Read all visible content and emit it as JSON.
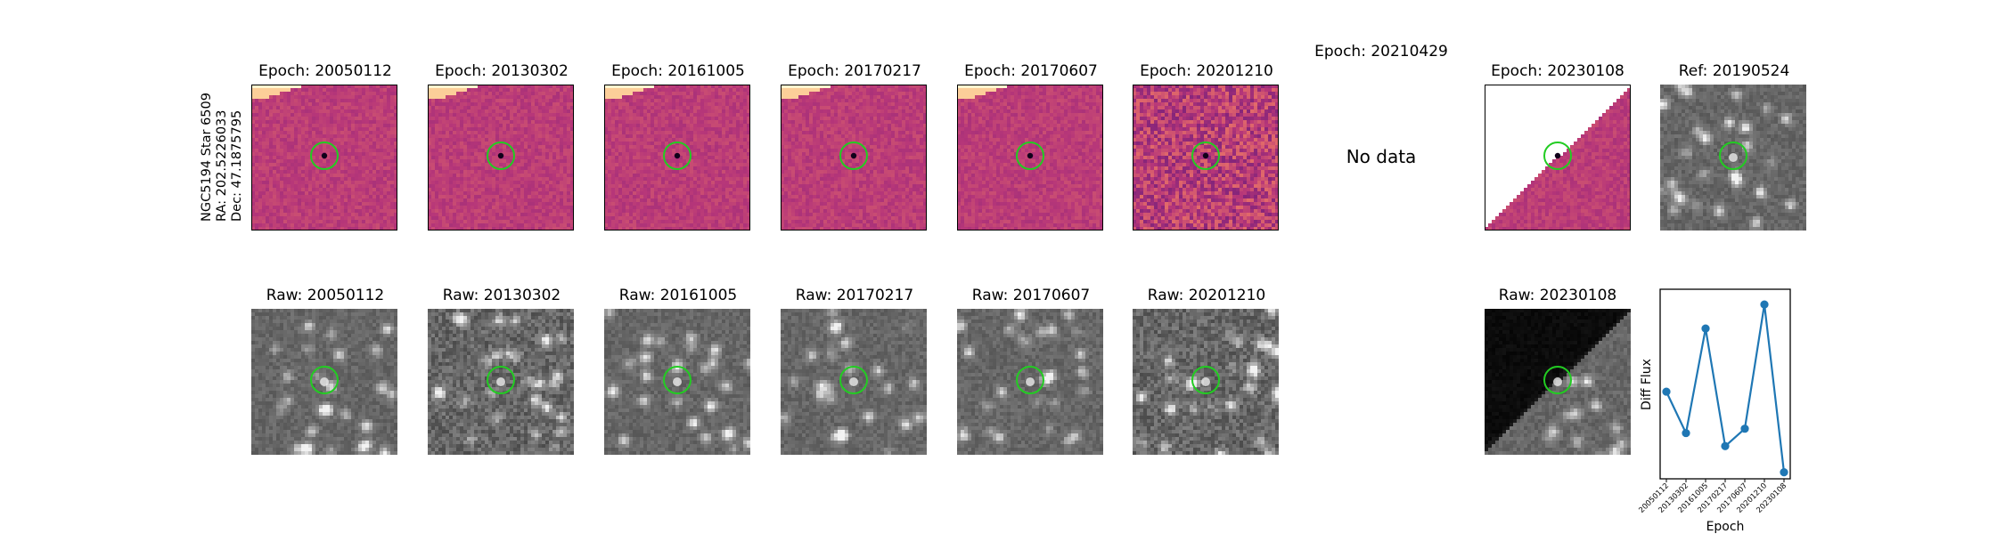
{
  "target": {
    "name": "NGC5194 Star 6509",
    "ra": "RA: 202.5226033",
    "dec": "Dec: 47.1875795"
  },
  "colors": {
    "marker": "#22cc22",
    "line": "#1f77b4"
  },
  "diff_titles": [
    "Epoch: 20050112",
    "Epoch: 20130302",
    "Epoch: 20161005",
    "Epoch: 20170217",
    "Epoch: 20170607",
    "Epoch: 20201210",
    "Epoch: 20210429",
    "Epoch: 20230108",
    "Ref: 20190524"
  ],
  "no_data_label": "No data",
  "raw_titles": [
    "Raw: 20050112",
    "Raw: 20130302",
    "Raw: 20161005",
    "Raw: 20170217",
    "Raw: 20170607",
    "Raw: 20201210",
    "Raw: 20230108"
  ],
  "chart_data": {
    "type": "line",
    "title": "",
    "xlabel": "Epoch",
    "ylabel": "Diff Flux",
    "x": [
      "20050112",
      "20130302",
      "20161005",
      "20170217",
      "20170607",
      "20201210",
      "20230108"
    ],
    "values": [
      0.35,
      0.16,
      0.64,
      0.1,
      0.18,
      0.75,
      -0.02
    ],
    "ylim": [
      -0.05,
      0.82
    ],
    "ytick_labels_shown": false,
    "grid": false,
    "marker": "circle"
  }
}
